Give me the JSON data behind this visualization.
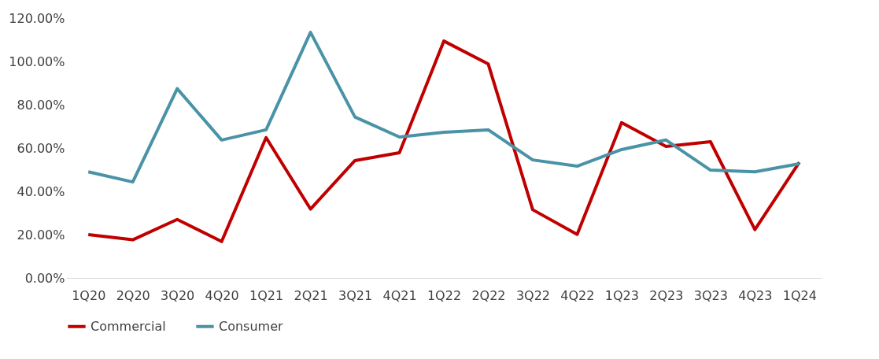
{
  "chart_data": {
    "type": "line",
    "categories": [
      "1Q20",
      "2Q20",
      "3Q20",
      "4Q20",
      "1Q21",
      "2Q21",
      "3Q21",
      "4Q21",
      "1Q22",
      "2Q22",
      "3Q22",
      "4Q22",
      "1Q23",
      "2Q23",
      "3Q23",
      "4Q23",
      "1Q24"
    ],
    "series": [
      {
        "name": "Commercial",
        "color": "#c00000",
        "values": [
          20,
          17.6,
          27,
          16.8,
          64.8,
          31.8,
          54.2,
          57.8,
          109.4,
          98.8,
          31.5,
          20.1,
          71.7,
          60.7,
          62.9,
          22.3,
          53.4
        ]
      },
      {
        "name": "Consumer",
        "color": "#4a93a6",
        "values": [
          49,
          44.3,
          87.4,
          63.7,
          68.4,
          113.4,
          74.3,
          65.1,
          67.3,
          68.4,
          54.5,
          51.6,
          59.3,
          63.7,
          49.8,
          49,
          52.7
        ]
      }
    ],
    "ylim": [
      0,
      120
    ],
    "yticks": [
      {
        "value": 0,
        "label": "0.00%"
      },
      {
        "value": 20,
        "label": "20.00%"
      },
      {
        "value": 40,
        "label": "40.00%"
      },
      {
        "value": 60,
        "label": "60.00%"
      },
      {
        "value": 80,
        "label": "80.00%"
      },
      {
        "value": 100,
        "label": "100.00%"
      },
      {
        "value": 120,
        "label": "120.00%"
      }
    ],
    "grid": false,
    "legend": "bottom",
    "line_style": "solid",
    "marker": "none"
  }
}
